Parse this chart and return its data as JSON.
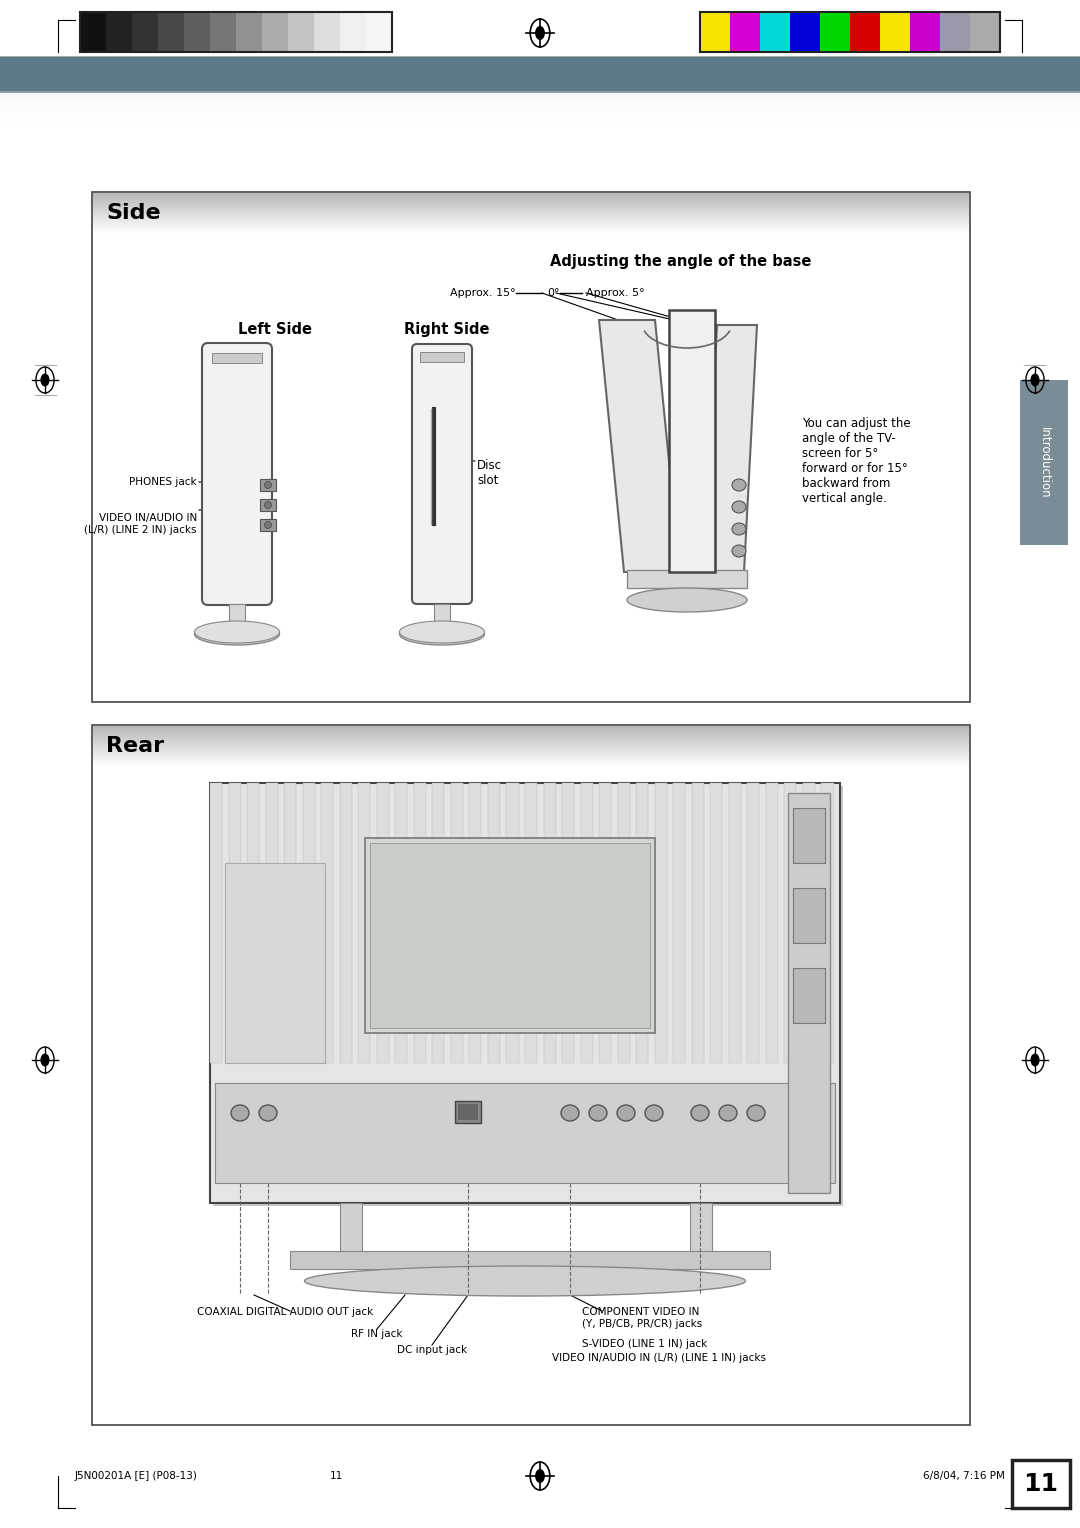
{
  "page_bg": "#ffffff",
  "header_bar_color": "#5c7a88",
  "color_bars_left": [
    "#111111",
    "#222222",
    "#333333",
    "#484848",
    "#5e5e5e",
    "#767676",
    "#919191",
    "#ababab",
    "#c4c4c4",
    "#dddddd",
    "#efefef",
    "#ffffff"
  ],
  "color_bars_right": [
    "#f5e500",
    "#d600d6",
    "#00d8d8",
    "#0000d8",
    "#00d800",
    "#d80000",
    "#f5e500",
    "#cc00cc",
    "#9999aa",
    "#aaaaaa"
  ],
  "side_title": "Side",
  "rear_title": "Rear",
  "adjusting_title": "Adjusting the angle of the base",
  "approx15_label": "Approx. 15°",
  "approx0_label": "0°",
  "approx5_label": "Approx. 5°",
  "left_side_label": "Left Side",
  "right_side_label": "Right Side",
  "disc_slot_label": "Disc\nslot",
  "phones_jack_label": "PHONES jack",
  "video_in_label": "VIDEO IN/AUDIO IN\n(L/R) (LINE 2 IN) jacks",
  "adjust_text": "You can adjust the\nangle of the TV-\nscreen for 5°\nforward or for 15°\nbackward from\nvertical angle.",
  "rear_coaxial_label": "COAXIAL DIGITAL AUDIO OUT jack",
  "rear_rf_label": "RF IN jack",
  "rear_dc_label": "DC input jack",
  "rear_component_label": "COMPONENT VIDEO IN\n(Y, PB/CB, PR/CR) jacks",
  "rear_svideo_label": "S-VIDEO (LINE 1 IN) jack",
  "rear_video_label": "VIDEO IN/AUDIO IN (L/R) (LINE 1 IN) jacks",
  "page_num": "11",
  "footer_left": "J5N00201A [E] (P08-13)",
  "footer_center": "11",
  "footer_right": "6/8/04, 7:16 PM",
  "intro_tab_label": "Introduction",
  "tab_color": "#7a8c96"
}
